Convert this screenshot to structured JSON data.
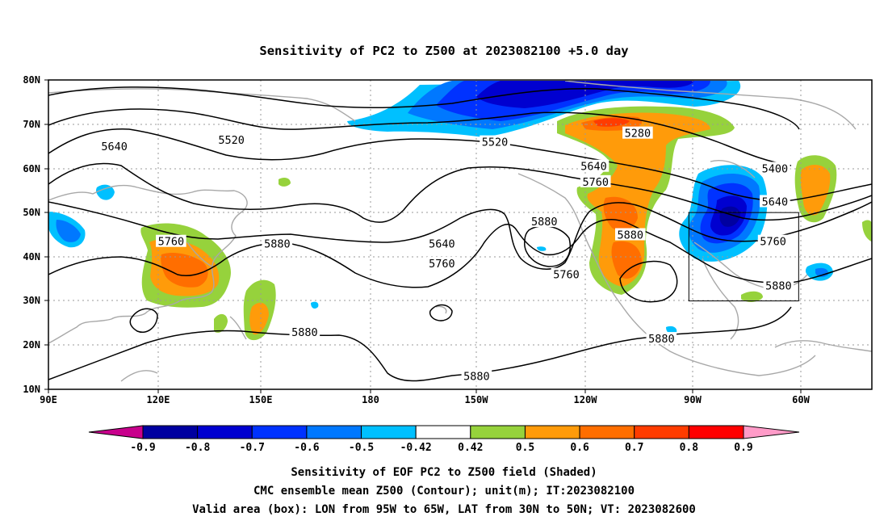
{
  "title": "Sensitivity of PC2 to Z500 at 2023082100 +5.0 day",
  "map": {
    "lon_labels": [
      "90E",
      "120E",
      "150E",
      "180",
      "150W",
      "120W",
      "90W",
      "60W"
    ],
    "lat_labels": [
      "80N",
      "70N",
      "60N",
      "50N",
      "40N",
      "30N",
      "20N",
      "10N"
    ],
    "contour_labels": [
      {
        "text": "5640",
        "lon": 108,
        "lat": 65
      },
      {
        "text": "5520",
        "lon": 140,
        "lat": 66.5
      },
      {
        "text": "5520",
        "lon": -148,
        "lat": 66
      },
      {
        "text": "5280",
        "lon": -109,
        "lat": 68
      },
      {
        "text": "5640",
        "lon": -121,
        "lat": 60.5
      },
      {
        "text": "5760",
        "lon": -120.5,
        "lat": 57
      },
      {
        "text": "5400",
        "lon": -71.5,
        "lat": 60
      },
      {
        "text": "5880",
        "lon": -134.5,
        "lat": 48
      },
      {
        "text": "5640",
        "lon": -71.5,
        "lat": 52.5
      },
      {
        "text": "5880",
        "lon": -111,
        "lat": 45
      },
      {
        "text": "5760",
        "lon": -72,
        "lat": 43.5
      },
      {
        "text": "5760",
        "lon": 123.5,
        "lat": 43.5
      },
      {
        "text": "5880",
        "lon": 152.5,
        "lat": 43
      },
      {
        "text": "5640",
        "lon": -162.5,
        "lat": 43
      },
      {
        "text": "5760",
        "lon": -162.5,
        "lat": 38.5
      },
      {
        "text": "5760",
        "lon": -128.5,
        "lat": 36
      },
      {
        "text": "5880",
        "lon": -70.5,
        "lat": 33.5
      },
      {
        "text": "5880",
        "lon": 160,
        "lat": 23
      },
      {
        "text": "5880",
        "lon": -102.5,
        "lat": 21.5
      },
      {
        "text": "5880",
        "lon": -153,
        "lat": 13
      }
    ],
    "valid_box": {
      "lon_min": -95,
      "lon_max": -65,
      "lat_min": 30,
      "lat_max": 50
    }
  },
  "colorbar": {
    "labels": [
      "-0.9",
      "-0.8",
      "-0.7",
      "-0.6",
      "-0.5",
      "-0.42",
      "0.42",
      "0.5",
      "0.6",
      "0.7",
      "0.8",
      "0.9"
    ],
    "colors": [
      "#0000a0",
      "#0000d0",
      "#0032ff",
      "#0078ff",
      "#00c0ff",
      "#ffffff",
      "#96d23c",
      "#ff9b0a",
      "#ff6e00",
      "#ff3c00",
      "#ff0000"
    ],
    "low_end_color": "#c8008c",
    "high_end_color": "#ff9bc8"
  },
  "caption": {
    "line1": "Sensitivity of EOF PC2 to Z500 field (Shaded)",
    "line2": "CMC ensemble mean Z500 (Contour); unit(m); IT:2023082100",
    "line3": "Valid area (box): LON from 95W to 65W, LAT from 30N to 50N; VT: 2023082600"
  }
}
